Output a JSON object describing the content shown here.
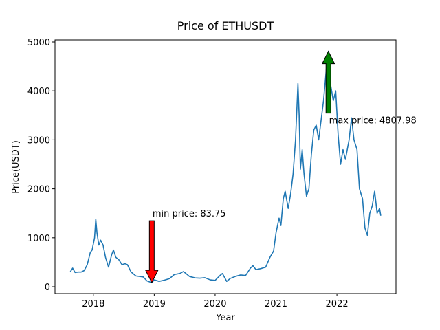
{
  "chart_data": {
    "type": "line",
    "title": "Price of ETHUSDT",
    "x_label": "Year",
    "y_label": "Price(USDT)",
    "x": [
      2017.62,
      2017.66,
      2017.7,
      2017.75,
      2017.8,
      2017.85,
      2017.9,
      2017.95,
      2017.98,
      2018.02,
      2018.04,
      2018.06,
      2018.09,
      2018.12,
      2018.16,
      2018.2,
      2018.25,
      2018.3,
      2018.33,
      2018.37,
      2018.42,
      2018.47,
      2018.52,
      2018.56,
      2018.62,
      2018.7,
      2018.76,
      2018.82,
      2018.88,
      2018.96,
      2019.0,
      2019.08,
      2019.17,
      2019.25,
      2019.33,
      2019.42,
      2019.48,
      2019.52,
      2019.58,
      2019.67,
      2019.75,
      2019.83,
      2019.92,
      2020.0,
      2020.08,
      2020.12,
      2020.19,
      2020.25,
      2020.33,
      2020.42,
      2020.5,
      2020.58,
      2020.62,
      2020.67,
      2020.75,
      2020.83,
      2020.9,
      2020.96,
      2021.0,
      2021.05,
      2021.08,
      2021.12,
      2021.15,
      2021.2,
      2021.24,
      2021.28,
      2021.32,
      2021.36,
      2021.38,
      2021.4,
      2021.43,
      2021.46,
      2021.5,
      2021.54,
      2021.58,
      2021.62,
      2021.66,
      2021.7,
      2021.74,
      2021.78,
      2021.83,
      2021.86,
      2021.9,
      2021.94,
      2021.98,
      2022.02,
      2022.06,
      2022.1,
      2022.14,
      2022.2,
      2022.24,
      2022.28,
      2022.33,
      2022.37,
      2022.42,
      2022.46,
      2022.5,
      2022.54,
      2022.58,
      2022.62,
      2022.66,
      2022.7,
      2022.72
    ],
    "series": [
      {
        "name": "ETHUSDT",
        "color": "#1f77b4",
        "values": [
          300,
          380,
          290,
          300,
          300,
          330,
          450,
          700,
          750,
          1000,
          1380,
          1100,
          850,
          950,
          850,
          600,
          400,
          650,
          750,
          600,
          550,
          450,
          470,
          450,
          300,
          220,
          210,
          200,
          120,
          83.75,
          140,
          110,
          135,
          165,
          250,
          270,
          310,
          270,
          210,
          180,
          175,
          185,
          140,
          130,
          230,
          270,
          110,
          170,
          210,
          240,
          230,
          380,
          430,
          350,
          370,
          400,
          600,
          730,
          1100,
          1400,
          1250,
          1800,
          1950,
          1600,
          1900,
          2300,
          3000,
          4150,
          3500,
          2400,
          2800,
          2300,
          1850,
          2000,
          2700,
          3200,
          3300,
          3000,
          3400,
          3800,
          4500,
          4807.98,
          4100,
          3800,
          4000,
          3100,
          2500,
          2800,
          2600,
          3000,
          3450,
          3000,
          2800,
          2000,
          1800,
          1200,
          1050,
          1500,
          1650,
          1950,
          1500,
          1600,
          1450
        ]
      }
    ],
    "xlim": [
      2017.37,
      2022.97
    ],
    "xticks": [
      2018,
      2019,
      2020,
      2021,
      2022
    ],
    "ylim": [
      -140,
      5042
    ],
    "yticks": [
      0,
      1000,
      2000,
      3000,
      4000,
      5000
    ],
    "annotations": [
      {
        "text": "min price: 83.75",
        "x": 2018.96,
        "y": 83.75,
        "color": "#ff0000",
        "direction": "down"
      },
      {
        "text": "max price: 4807.98",
        "x": 2021.86,
        "y": 4807.98,
        "color": "#008000",
        "direction": "up"
      }
    ]
  }
}
